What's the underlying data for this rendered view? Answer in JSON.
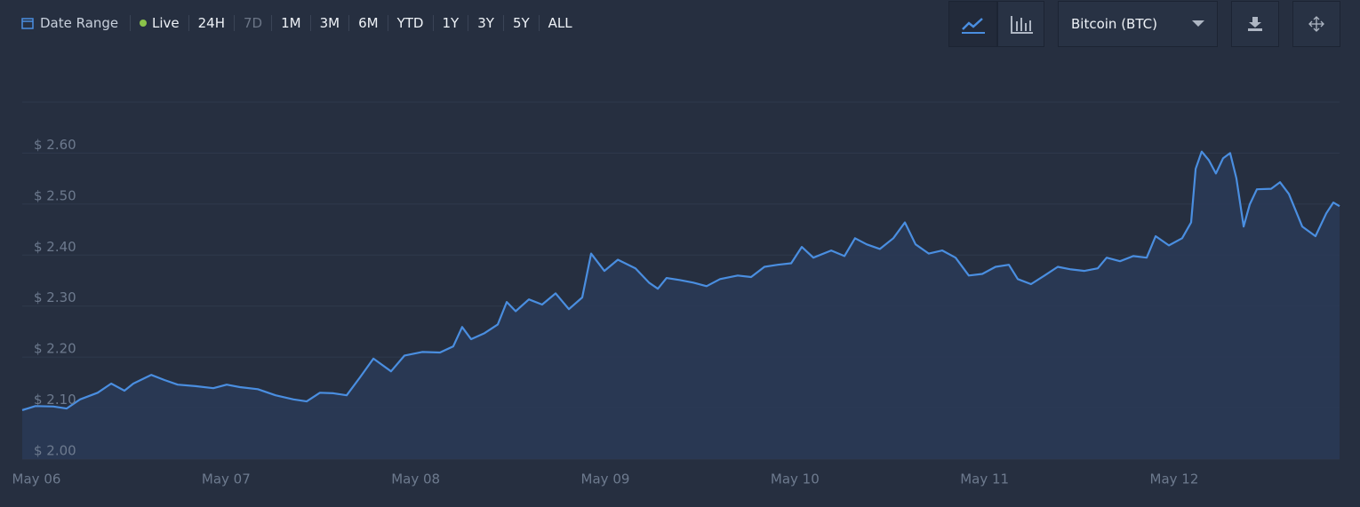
{
  "toolbar": {
    "date_range_label": "Date Range",
    "live_label": "Live",
    "ranges": [
      "24H",
      "7D",
      "1M",
      "3M",
      "6M",
      "YTD",
      "1Y",
      "3Y",
      "5Y",
      "ALL"
    ],
    "asset": "Bitcoin (BTC)"
  },
  "chart_data": {
    "type": "line",
    "xlim": [
      -0.075,
      6.872
    ],
    "xticks": [
      {
        "value": 0,
        "label": "May 06"
      },
      {
        "value": 1,
        "label": "May 07"
      },
      {
        "value": 2,
        "label": "May 08"
      },
      {
        "value": 3,
        "label": "May 09"
      },
      {
        "value": 4,
        "label": "May 10"
      },
      {
        "value": 5,
        "label": "May 11"
      },
      {
        "value": 6,
        "label": "May 12"
      }
    ],
    "ylim": [
      2.0,
      2.7
    ],
    "yticks": [
      {
        "value": 2.0,
        "label": "$ 2.00"
      },
      {
        "value": 2.1,
        "label": "$ 2.10"
      },
      {
        "value": 2.2,
        "label": "$ 2.20"
      },
      {
        "value": 2.3,
        "label": "$ 2.30"
      },
      {
        "value": 2.4,
        "label": "$ 2.40"
      },
      {
        "value": 2.5,
        "label": "$ 2.50"
      },
      {
        "value": 2.6,
        "label": "$ 2.60"
      }
    ],
    "grid": true,
    "series": [
      {
        "color": "#4a8ee0",
        "x": [
          -0.075,
          -0.005,
          0.089,
          0.159,
          0.23,
          0.323,
          0.394,
          0.464,
          0.511,
          0.605,
          0.675,
          0.745,
          0.839,
          0.933,
          1.003,
          1.073,
          1.167,
          1.261,
          1.355,
          1.425,
          1.495,
          1.566,
          1.636,
          1.706,
          1.777,
          1.87,
          1.941,
          2.034,
          2.128,
          2.198,
          2.245,
          2.292,
          2.363,
          2.433,
          2.48,
          2.527,
          2.597,
          2.667,
          2.738,
          2.808,
          2.878,
          2.925,
          2.995,
          3.066,
          3.159,
          3.23,
          3.277,
          3.323,
          3.394,
          3.464,
          3.534,
          3.605,
          3.698,
          3.769,
          3.839,
          3.909,
          3.98,
          4.036,
          4.097,
          4.191,
          4.261,
          4.317,
          4.378,
          4.448,
          4.519,
          4.58,
          4.636,
          4.706,
          4.777,
          4.847,
          4.917,
          4.988,
          5.058,
          5.128,
          5.175,
          5.245,
          5.316,
          5.386,
          5.456,
          5.527,
          5.597,
          5.644,
          5.714,
          5.784,
          5.855,
          5.902,
          5.972,
          6.042,
          6.089,
          6.113,
          6.145,
          6.183,
          6.22,
          6.258,
          6.295,
          6.328,
          6.366,
          6.398,
          6.436,
          6.511,
          6.558,
          6.605,
          6.675,
          6.745,
          6.802,
          6.839,
          6.872
        ],
        "values": [
          2.096,
          2.104,
          2.103,
          2.099,
          2.117,
          2.13,
          2.148,
          2.134,
          2.148,
          2.165,
          2.155,
          2.146,
          2.143,
          2.139,
          2.146,
          2.141,
          2.137,
          2.125,
          2.117,
          2.113,
          2.13,
          2.129,
          2.125,
          2.16,
          2.197,
          2.172,
          2.203,
          2.21,
          2.209,
          2.221,
          2.259,
          2.235,
          2.247,
          2.264,
          2.308,
          2.29,
          2.313,
          2.303,
          2.325,
          2.294,
          2.317,
          2.403,
          2.369,
          2.391,
          2.374,
          2.346,
          2.334,
          2.355,
          2.351,
          2.346,
          2.339,
          2.353,
          2.36,
          2.357,
          2.377,
          2.381,
          2.384,
          2.416,
          2.395,
          2.409,
          2.398,
          2.433,
          2.421,
          2.412,
          2.433,
          2.464,
          2.421,
          2.403,
          2.409,
          2.395,
          2.36,
          2.363,
          2.377,
          2.381,
          2.353,
          2.343,
          2.36,
          2.377,
          2.372,
          2.369,
          2.374,
          2.395,
          2.388,
          2.398,
          2.395,
          2.437,
          2.419,
          2.433,
          2.464,
          2.569,
          2.603,
          2.586,
          2.56,
          2.59,
          2.6,
          2.551,
          2.456,
          2.499,
          2.529,
          2.53,
          2.543,
          2.52,
          2.456,
          2.437,
          2.482,
          2.503,
          2.496
        ]
      }
    ]
  }
}
